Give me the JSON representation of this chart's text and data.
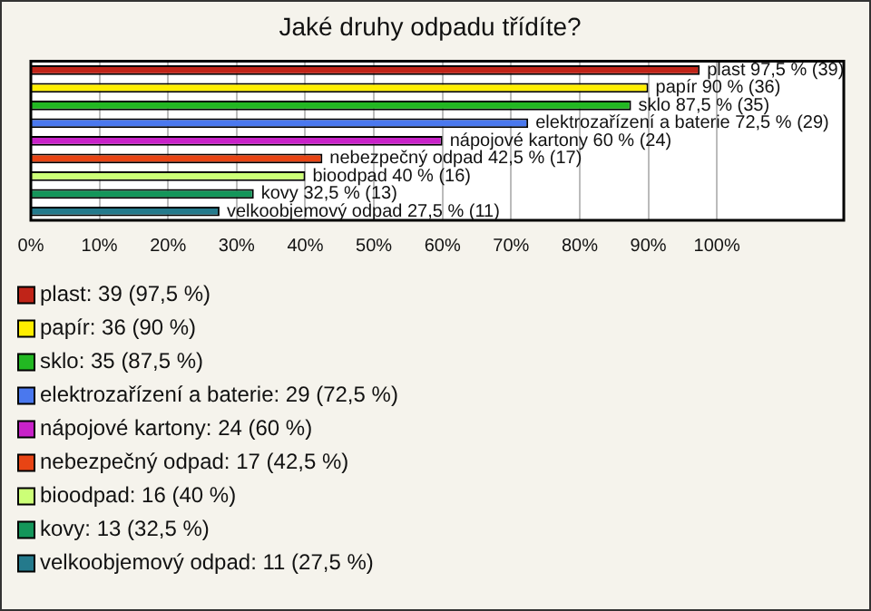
{
  "chart_data": {
    "type": "bar",
    "orientation": "horizontal",
    "title": "Jaké druhy odpadu třídíte?",
    "categories": [
      null,
      null,
      null,
      null,
      null,
      null,
      null,
      null,
      null
    ],
    "series": [
      {
        "name": "plast: 39 (97,5 %)",
        "color": "#c02418",
        "values": [
          97.5,
          null,
          null,
          null,
          null,
          null,
          null,
          null,
          null
        ],
        "value_labels": [
          "plast 97,5 % (39)",
          null,
          null,
          null,
          null,
          null,
          null,
          null,
          null
        ]
      },
      {
        "name": "papír: 36 (90 %)",
        "color": "#ffee00",
        "values": [
          null,
          90,
          null,
          null,
          null,
          null,
          null,
          null,
          null
        ],
        "value_labels": [
          null,
          "papír 90 % (36)",
          null,
          null,
          null,
          null,
          null,
          null,
          null
        ]
      },
      {
        "name": "sklo: 35 (87,5 %)",
        "color": "#22b822",
        "values": [
          null,
          null,
          87.5,
          null,
          null,
          null,
          null,
          null,
          null
        ],
        "value_labels": [
          null,
          null,
          "sklo 87,5 % (35)",
          null,
          null,
          null,
          null,
          null,
          null
        ]
      },
      {
        "name": "elektrozařízení a baterie: 29 (72,5 %)",
        "color": "#4a78ee",
        "values": [
          null,
          null,
          null,
          72.5,
          null,
          null,
          null,
          null,
          null
        ],
        "value_labels": [
          null,
          null,
          null,
          "elektrozařízení a baterie 72,5 % (29)",
          null,
          null,
          null,
          null,
          null
        ]
      },
      {
        "name": "nápojové kartony: 24 (60 %)",
        "color": "#c822c8",
        "values": [
          null,
          null,
          null,
          null,
          60,
          null,
          null,
          null,
          null
        ],
        "value_labels": [
          null,
          null,
          null,
          null,
          "nápojové kartony 60 % (24)",
          null,
          null,
          null,
          null
        ]
      },
      {
        "name": "nebezpečný odpad: 17 (42,5 %)",
        "color": "#e84414",
        "values": [
          null,
          null,
          null,
          null,
          null,
          42.5,
          null,
          null,
          null
        ],
        "value_labels": [
          null,
          null,
          null,
          null,
          null,
          "nebezpečný odpad 42,5 % (17)",
          null,
          null,
          null
        ]
      },
      {
        "name": "bioodpad: 16 (40 %)",
        "color": "#ccff77",
        "values": [
          null,
          null,
          null,
          null,
          null,
          null,
          40,
          null,
          null
        ],
        "value_labels": [
          null,
          null,
          null,
          null,
          null,
          null,
          "bioodpad 40 % (16)",
          null,
          null
        ]
      },
      {
        "name": "kovy: 13 (32,5 %)",
        "color": "#14965a",
        "values": [
          null,
          null,
          null,
          null,
          null,
          null,
          null,
          32.5,
          null
        ],
        "value_labels": [
          null,
          null,
          null,
          null,
          null,
          null,
          null,
          "kovy 32,5 % (13)",
          null
        ]
      },
      {
        "name": "velkoobjemový odpad: 11 (27,5 %)",
        "color": "#247a8c",
        "values": [
          null,
          null,
          null,
          null,
          null,
          null,
          null,
          null,
          27.5
        ],
        "value_labels": [
          null,
          null,
          null,
          null,
          null,
          null,
          null,
          null,
          "velkoobjemový odpad 27,5 % (11)"
        ]
      }
    ],
    "xlim": [
      0,
      118.5
    ],
    "xticks": [
      {
        "value": 0,
        "label": "0%"
      },
      {
        "value": 10,
        "label": "10%"
      },
      {
        "value": 20,
        "label": "20%"
      },
      {
        "value": 30,
        "label": "30%"
      },
      {
        "value": 40,
        "label": "40%"
      },
      {
        "value": 50,
        "label": "50%"
      },
      {
        "value": 60,
        "label": "60%"
      },
      {
        "value": 70,
        "label": "70%"
      },
      {
        "value": 80,
        "label": "80%"
      },
      {
        "value": 90,
        "label": "90%"
      },
      {
        "value": 100,
        "label": "100%"
      }
    ],
    "grid": "x",
    "tick_labels": "x",
    "legend": "bottom"
  }
}
